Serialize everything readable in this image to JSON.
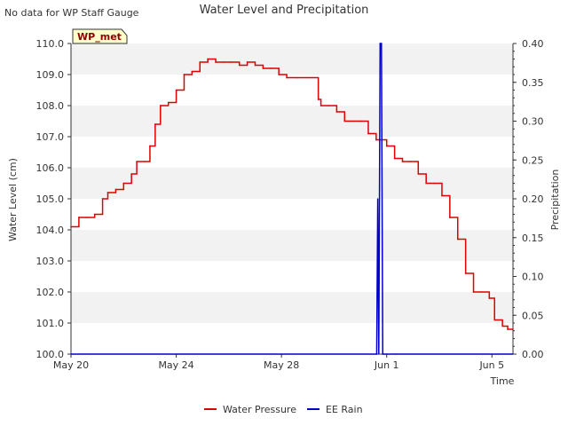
{
  "chart_data": {
    "type": "line",
    "title": "Water Level and Precipitation",
    "note": "No data for WP Staff Gauge",
    "station_label": "WP_met",
    "xlabel": "Time",
    "ylabel_left": "Water Level (cm)",
    "ylabel_right": "Precipitation",
    "x_range": [
      0,
      16.8
    ],
    "x_ticks": [
      {
        "day": 0,
        "label": "May 20"
      },
      {
        "day": 4,
        "label": "May 24"
      },
      {
        "day": 8,
        "label": "May 28"
      },
      {
        "day": 12,
        "label": "Jun 1"
      },
      {
        "day": 16,
        "label": "Jun 5"
      }
    ],
    "y_left_range": [
      100.0,
      110.0
    ],
    "y_left_ticks": [
      "100.0",
      "101.0",
      "102.0",
      "103.0",
      "104.0",
      "105.0",
      "106.0",
      "107.0",
      "108.0",
      "109.0",
      "110.0"
    ],
    "y_right_range": [
      0.0,
      0.4
    ],
    "y_right_ticks": [
      "0.00",
      "0.05",
      "0.10",
      "0.15",
      "0.20",
      "0.25",
      "0.30",
      "0.35",
      "0.40"
    ],
    "grid": "horizontal bands",
    "legend_position": "bottom",
    "colors": {
      "water": "#dd0000",
      "rain": "#0000cc",
      "band": "#f2f2f2",
      "station_bg": "#ffffcc",
      "station_text": "#8b0000"
    },
    "series": [
      {
        "name": "Water Pressure",
        "axis": "left",
        "x": [
          0.0,
          0.3,
          0.6,
          0.9,
          1.2,
          1.4,
          1.7,
          2.0,
          2.3,
          2.5,
          2.8,
          3.0,
          3.2,
          3.4,
          3.7,
          4.0,
          4.3,
          4.6,
          4.9,
          5.2,
          5.5,
          5.8,
          6.1,
          6.4,
          6.7,
          7.0,
          7.3,
          7.6,
          7.9,
          8.2,
          8.6,
          9.0,
          9.4,
          9.5,
          9.8,
          10.1,
          10.4,
          10.7,
          11.0,
          11.3,
          11.6,
          11.8,
          12.0,
          12.3,
          12.6,
          12.9,
          13.2,
          13.5,
          13.8,
          14.1,
          14.4,
          14.7,
          15.0,
          15.3,
          15.6,
          15.9,
          16.1,
          16.4,
          16.6,
          16.8
        ],
        "y": [
          104.1,
          104.4,
          104.4,
          104.5,
          105.0,
          105.2,
          105.3,
          105.5,
          105.8,
          106.2,
          106.2,
          106.7,
          107.4,
          108.0,
          108.1,
          108.5,
          109.0,
          109.1,
          109.4,
          109.5,
          109.4,
          109.4,
          109.4,
          109.3,
          109.4,
          109.3,
          109.2,
          109.2,
          109.0,
          108.9,
          108.9,
          108.9,
          108.2,
          108.0,
          108.0,
          107.8,
          107.5,
          107.5,
          107.5,
          107.1,
          106.9,
          106.9,
          106.7,
          106.3,
          106.2,
          106.2,
          105.8,
          105.5,
          105.5,
          105.1,
          104.4,
          103.7,
          102.6,
          102.0,
          102.0,
          101.8,
          101.1,
          100.9,
          100.8,
          100.8
        ]
      },
      {
        "name": "EE Rain",
        "axis": "right",
        "x": [
          0.0,
          11.6,
          11.62,
          11.66,
          11.7,
          11.75,
          11.8,
          11.85,
          11.9,
          12.0,
          12.4,
          16.8
        ],
        "y": [
          0.0,
          0.0,
          0.0,
          0.2,
          0.0,
          0.4,
          0.4,
          0.0,
          0.0,
          0.0,
          0.0,
          0.0
        ]
      }
    ]
  }
}
